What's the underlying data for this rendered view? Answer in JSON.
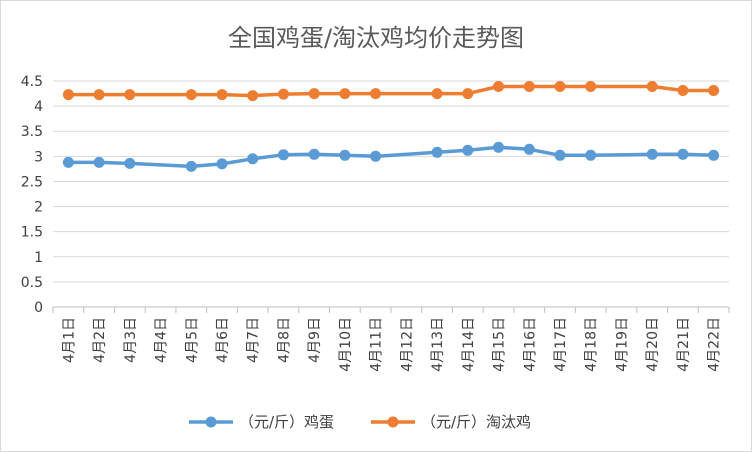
{
  "chart_data": {
    "type": "line",
    "title": "全国鸡蛋/淘汰鸡均价走势图",
    "categories": [
      "4月1日",
      "4月2日",
      "4月3日",
      "4月4日",
      "4月5日",
      "4月6日",
      "4月7日",
      "4月8日",
      "4月9日",
      "4月10日",
      "4月11日",
      "4月12日",
      "4月13日",
      "4月14日",
      "4月15日",
      "4月16日",
      "4月17日",
      "4月18日",
      "4月19日",
      "4月20日",
      "4月21日",
      "4月22日"
    ],
    "ylim": [
      0,
      4.5
    ],
    "yticks": [
      "0",
      "0.5",
      "1",
      "1.5",
      "2",
      "2.5",
      "3",
      "3.5",
      "4",
      "4.5"
    ],
    "grid": true,
    "legend_position": "bottom",
    "series": [
      {
        "name": "（元/斤）鸡蛋",
        "color": "#5b9bd5",
        "values": [
          2.88,
          2.88,
          2.86,
          null,
          2.8,
          2.85,
          2.95,
          3.03,
          3.04,
          3.02,
          3.0,
          null,
          3.08,
          3.12,
          3.18,
          3.14,
          3.02,
          3.02,
          null,
          3.04,
          3.04,
          3.02
        ]
      },
      {
        "name": "（元/斤）淘汰鸡",
        "color": "#ed7d31",
        "values": [
          4.23,
          4.23,
          4.23,
          null,
          4.23,
          4.23,
          4.21,
          4.24,
          4.25,
          4.25,
          4.25,
          null,
          4.25,
          4.25,
          4.39,
          4.39,
          4.39,
          4.39,
          null,
          4.39,
          4.31,
          4.31
        ]
      }
    ]
  }
}
